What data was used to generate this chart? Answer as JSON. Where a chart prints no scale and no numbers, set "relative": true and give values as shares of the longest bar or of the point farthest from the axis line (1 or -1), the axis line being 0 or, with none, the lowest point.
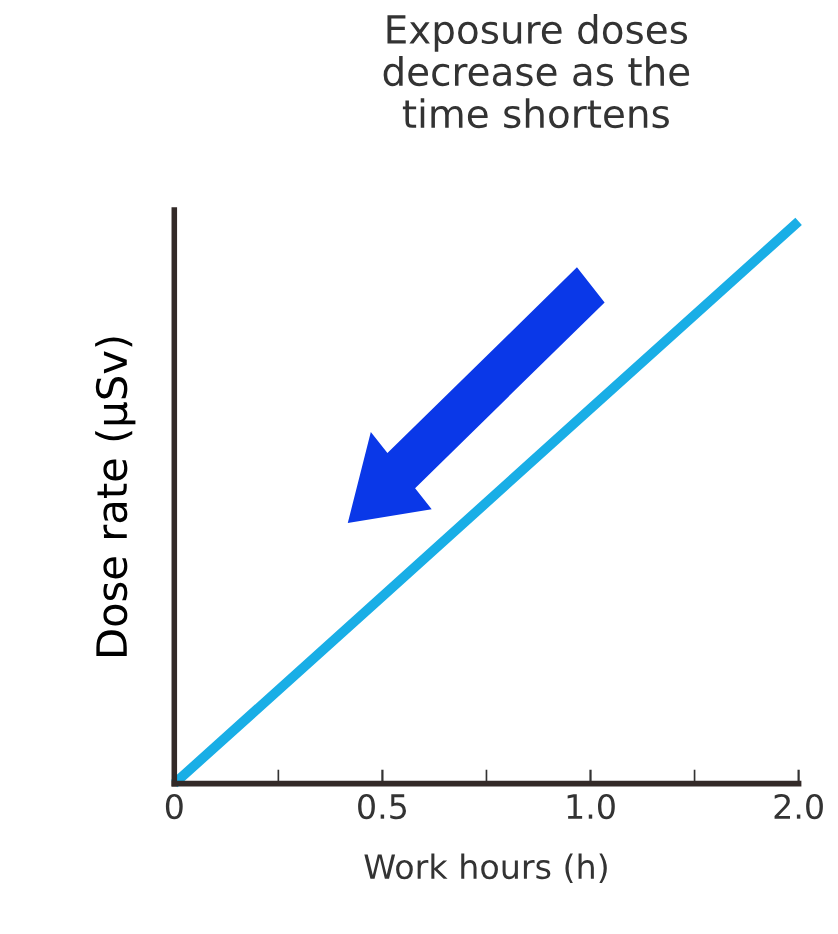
{
  "chart_data": {
    "type": "line",
    "relative": true,
    "xlabel": "Work hours (h)",
    "ylabel": "Dose rate (µSv)",
    "categories": [
      "0",
      "0.5",
      "1.0",
      "2.0"
    ],
    "series": [
      {
        "color": "#19aee6",
        "values": [
          0,
          0.333,
          0.667,
          1
        ]
      }
    ],
    "annotations": [
      "Exposure doses\ndecrease as the\ntime shortens"
    ],
    "grid": false,
    "legend": false
  }
}
